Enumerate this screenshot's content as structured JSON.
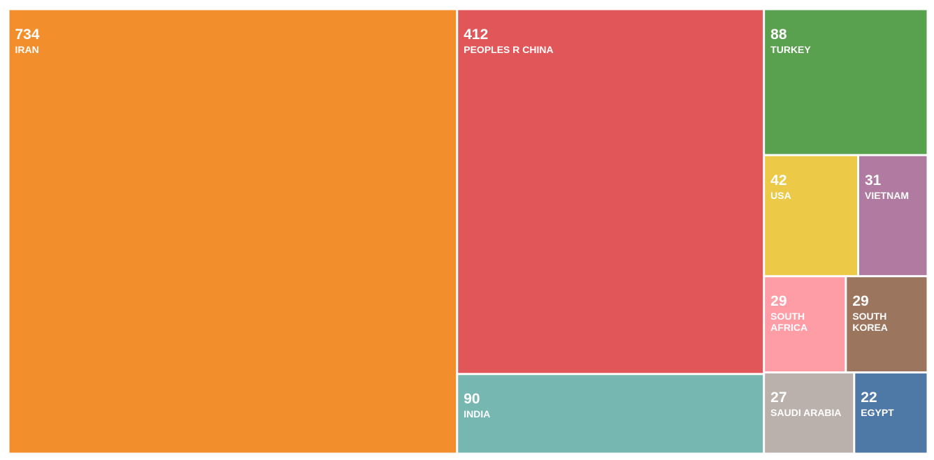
{
  "chart_data": {
    "type": "treemap",
    "categories": [
      "IRAN",
      "PEOPLES R CHINA",
      "INDIA",
      "TURKEY",
      "USA",
      "VIETNAM",
      "SOUTH AFRICA",
      "SOUTH KOREA",
      "SAUDI ARABIA",
      "EGYPT"
    ],
    "values": [
      734,
      412,
      90,
      88,
      42,
      31,
      29,
      29,
      27,
      22
    ],
    "colors": [
      "#f28e2b",
      "#e15759",
      "#76b7b2",
      "#59a14f",
      "#edc948",
      "#b07aa1",
      "#ff9da7",
      "#9c755f",
      "#bab0ac",
      "#4e79a7"
    ]
  }
}
